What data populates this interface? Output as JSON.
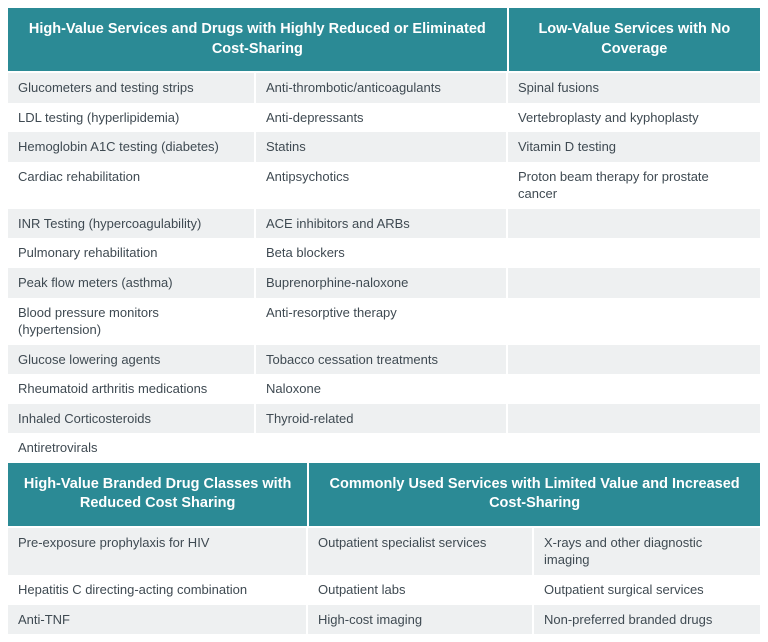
{
  "colors": {
    "header_bg": "#2b8a95",
    "text": "#3f4a52",
    "row_even": "#eef0f1",
    "row_odd": "#ffffff"
  },
  "top": {
    "header_left": "High-Value Services and Drugs with Highly Reduced or Eliminated Cost-Sharing",
    "header_right": "Low-Value Services with No Coverage",
    "rows": [
      [
        "Glucometers and testing strips",
        "Anti-thrombotic/anticoagulants",
        "Spinal fusions"
      ],
      [
        "LDL testing (hyperlipidemia)",
        "Anti-depressants",
        "Vertebroplasty and kyphoplasty"
      ],
      [
        "Hemoglobin A1C testing (diabetes)",
        "Statins",
        "Vitamin D testing"
      ],
      [
        "Cardiac rehabilitation",
        "Antipsychotics",
        "Proton beam therapy for prostate cancer"
      ],
      [
        "INR Testing (hypercoagulability)",
        "ACE inhibitors and ARBs",
        ""
      ],
      [
        "Pulmonary rehabilitation",
        "Beta blockers",
        ""
      ],
      [
        "Peak flow meters (asthma)",
        "Buprenorphine-naloxone",
        ""
      ],
      [
        "Blood pressure monitors (hypertension)",
        "Anti-resorptive therapy",
        ""
      ],
      [
        "Glucose lowering agents",
        "Tobacco cessation treatments",
        ""
      ],
      [
        "Rheumatoid arthritis medications",
        "Naloxone",
        ""
      ],
      [
        "Inhaled Corticosteroids",
        "Thyroid-related",
        ""
      ],
      [
        "Antiretrovirals",
        "",
        ""
      ]
    ]
  },
  "bottom": {
    "header_left": "High-Value Branded Drug Classes with Reduced Cost Sharing",
    "header_right": "Commonly Used Services with Limited Value and Increased Cost-Sharing",
    "rows": [
      [
        "Pre-exposure prophylaxis for HIV",
        "Outpatient specialist services",
        "X-rays and other diagnostic imaging"
      ],
      [
        "Hepatitis C directing-acting combination",
        "Outpatient labs",
        "Outpatient surgical services"
      ],
      [
        "Anti-TNF",
        "High-cost imaging",
        "Non-preferred branded drugs"
      ]
    ]
  }
}
